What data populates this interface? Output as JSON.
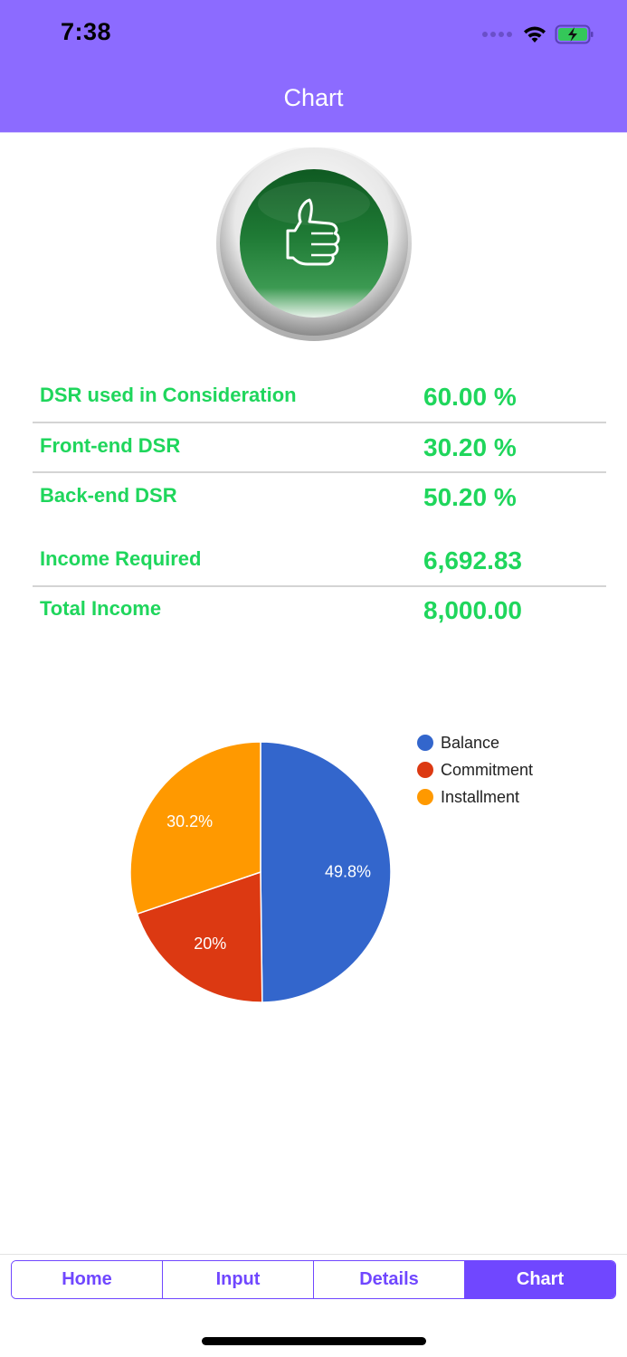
{
  "status_bar": {
    "time": "7:38",
    "icons": [
      "signal-dots-icon",
      "wifi-icon",
      "battery-charging-icon"
    ]
  },
  "nav": {
    "title": "Chart"
  },
  "badge": {
    "icon": "thumbs-up-icon"
  },
  "metrics": [
    {
      "label": "DSR used in Consideration",
      "value": "60.00 %"
    },
    {
      "label": "Front-end DSR",
      "value": "30.20 %"
    },
    {
      "label": "Back-end DSR",
      "value": "50.20 %"
    },
    {
      "label": "Income Required",
      "value": "6,692.83"
    },
    {
      "label": "Total Income",
      "value": "8,000.00"
    }
  ],
  "colors": {
    "header": "#8c6bff",
    "accent": "#7047ff",
    "metric_text": "#1fd65c"
  },
  "chart_data": {
    "type": "pie",
    "title": "",
    "categories": [
      "Balance",
      "Commitment",
      "Installment"
    ],
    "values": [
      49.8,
      20,
      30.2
    ],
    "labels": [
      "49.8%",
      "20%",
      "30.2%"
    ],
    "colors": [
      "#3366cc",
      "#dc3912",
      "#ff9900"
    ],
    "legend_position": "right",
    "start_angle_deg": 0,
    "direction": "clockwise"
  },
  "tabs": [
    {
      "label": "Home",
      "active": false
    },
    {
      "label": "Input",
      "active": false
    },
    {
      "label": "Details",
      "active": false
    },
    {
      "label": "Chart",
      "active": true
    }
  ]
}
